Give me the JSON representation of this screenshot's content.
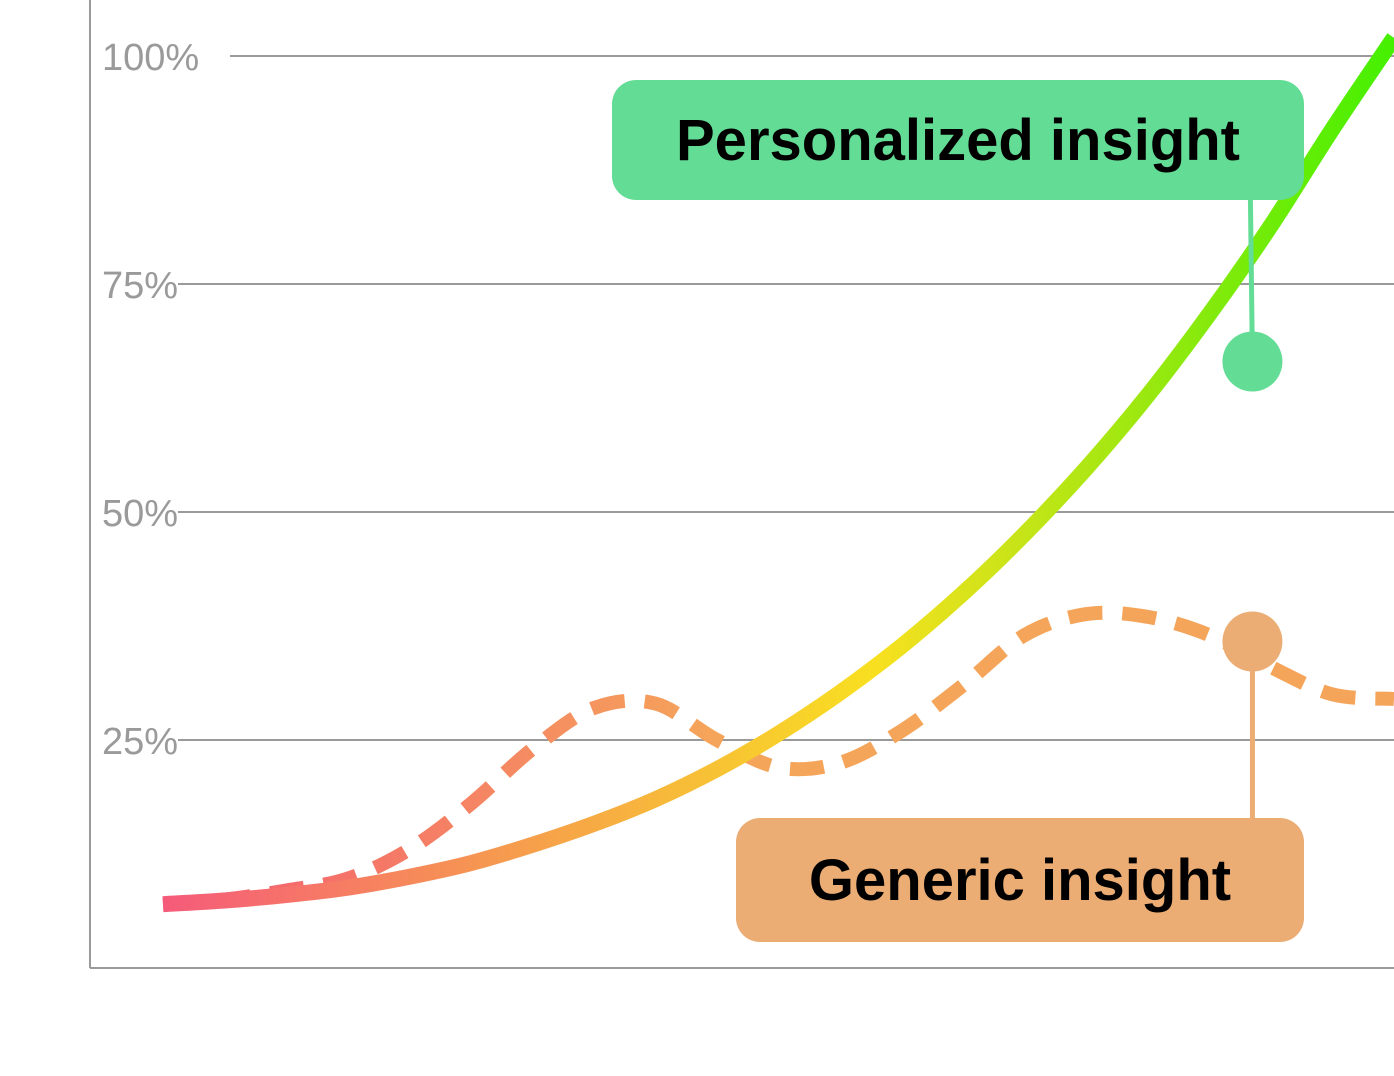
{
  "chart_data": {
    "type": "line",
    "title": "",
    "xlabel": "",
    "ylabel": "",
    "ylim": [
      0,
      100
    ],
    "y_ticks": [
      {
        "value": 25,
        "label": "25%"
      },
      {
        "value": 50,
        "label": "50%"
      },
      {
        "value": 75,
        "label": "75%"
      },
      {
        "value": 100,
        "label": "100%"
      }
    ],
    "x": [
      0,
      5,
      10,
      15,
      20,
      25,
      30,
      35,
      40,
      45,
      50,
      55,
      60,
      65,
      70,
      75,
      80,
      85,
      90,
      95,
      100
    ],
    "grid": "horizontal",
    "series": [
      {
        "key": "personalized",
        "style": "solid-gradient",
        "color_start": "#f55a7a",
        "color_mid": "#f8e020",
        "color_end": "#44f000",
        "values": [
          7,
          7.4,
          8,
          8.8,
          10,
          11.5,
          13.5,
          15.8,
          18.5,
          21.8,
          25.7,
          30.2,
          35.3,
          41.1,
          47.6,
          54.8,
          62.8,
          71.7,
          81.4,
          92,
          102
        ]
      },
      {
        "key": "generic",
        "style": "dashed-gradient",
        "color_start": "#f55a70",
        "color_end": "#f5a55a",
        "values": [
          7,
          7.5,
          8.5,
          9.8,
          13,
          18,
          24,
          28.5,
          29,
          25,
          22,
          22.5,
          26,
          31,
          36.5,
          38.8,
          38.5,
          36.5,
          33,
          30,
          29.5
        ]
      }
    ],
    "annotations": [
      {
        "series": "personalized",
        "label": "Personalized insight",
        "x": 88.5,
        "y": 66.5,
        "color": "#63dd96",
        "placement": "above"
      },
      {
        "series": "generic",
        "label": "Generic insight",
        "x": 88.5,
        "y": 35.8,
        "color": "#ecad74",
        "placement": "below"
      }
    ]
  }
}
